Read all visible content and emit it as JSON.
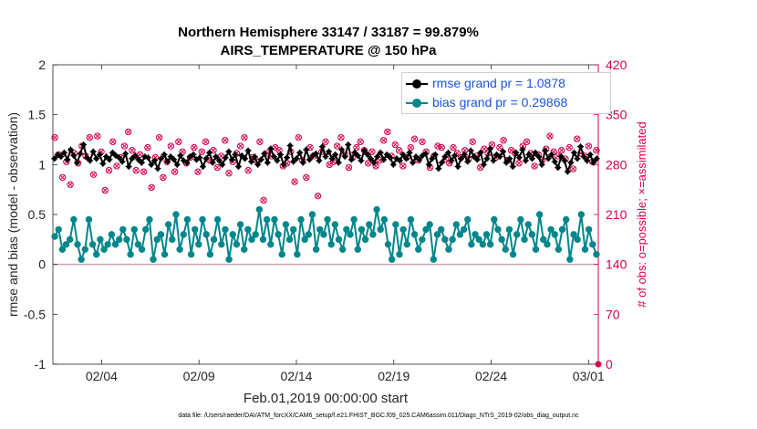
{
  "title_line1": "Northern Hemisphere 33147 / 33187 = 99.879%",
  "title_line2": "AIRS_TEMPERATURE @ 150 hPa",
  "footer": "data file: /Users/raeder/DAI/ATM_forcXX/CAM6_setup/f.e21.FHIST_BGC.f09_025.CAM6assim.011/Diags_NTrS_2019-02/obs_diag_output.nc",
  "colors": {
    "rmse": "#000000",
    "bias": "#00868b",
    "obs": "#d6004f",
    "zero_line": "#c8a2a8"
  },
  "chart_data": {
    "type": "line",
    "xlabel": "Feb.01,2019 00:00:00 start",
    "ylabel": "rmse and bias (model - observation)",
    "y2label": "# of obs: o=possible; ×=assimilated",
    "xlim": [
      0,
      28
    ],
    "ylim": [
      -1,
      2
    ],
    "y2lim": [
      0,
      420
    ],
    "x_ticks": [
      2.5,
      7.5,
      12.5,
      17.5,
      22.5,
      27.5
    ],
    "x_tick_labels": [
      "02/04",
      "02/09",
      "02/14",
      "02/19",
      "02/24",
      "03/01"
    ],
    "y_ticks": [
      -1,
      -0.5,
      0,
      0.5,
      1,
      1.5,
      2
    ],
    "y_tick_labels": [
      "-1",
      "-0.5",
      "0",
      "0.5",
      "1",
      "1.5",
      "2"
    ],
    "y2_ticks": [
      0,
      70,
      140,
      210,
      280,
      350,
      420
    ],
    "y2_tick_labels": [
      "0",
      "70",
      "140",
      "210",
      "280",
      "350",
      "420"
    ],
    "legend_placement": "top-right",
    "grid": false,
    "series": [
      {
        "name": "rmse grand pr = 1.0878",
        "values": [
          1.06,
          1.1,
          1.08,
          1.12,
          1.05,
          1.15,
          1.09,
          1.02,
          1.11,
          1.2,
          1.07,
          1.04,
          1.13,
          1.06,
          1.1,
          1.01,
          1.08,
          1.05,
          1.12,
          1.09,
          1.07,
          1.03,
          1.11,
          0.98,
          1.06,
          1.09,
          1.05,
          1.02,
          1.08,
          1.07,
          1.0,
          1.04,
          0.96,
          1.06,
          1.1,
          1.03,
          1.08,
          1.05,
          1.0,
          1.09,
          1.04,
          1.02,
          1.08,
          1.1,
          1.05,
          1.07,
          0.98,
          1.06,
          1.12,
          1.02,
          1.08,
          1.04,
          1.0,
          1.07,
          1.13,
          1.05,
          1.1,
          0.98,
          1.09,
          1.06,
          1.14,
          1.03,
          1.08,
          1.0,
          1.05,
          1.11,
          1.02,
          1.16,
          1.08,
          1.04,
          1.1,
          1.0,
          1.07,
          1.19,
          1.03,
          1.06,
          1.12,
          1.02,
          1.15,
          1.05,
          1.09,
          1.11,
          1.04,
          1.18,
          1.08,
          1.13,
          1.06,
          1.1,
          1.02,
          1.15,
          1.08,
          1.2,
          1.05,
          1.12,
          1.09,
          1.04,
          1.14,
          1.1,
          1.06,
          1.02,
          1.08,
          1.12,
          1.05,
          1.1,
          1.07,
          1.0,
          1.06,
          1.04,
          1.1,
          1.06,
          1.12,
          1.02,
          1.08,
          1.05,
          1.09,
          1.11,
          1.0,
          1.06,
          1.1,
          0.96,
          1.02,
          1.08,
          1.12,
          1.04,
          1.09,
          0.98,
          1.06,
          1.1,
          1.03,
          1.14,
          1.08,
          1.05,
          1.12,
          1.0,
          1.06,
          1.16,
          1.04,
          1.1,
          1.08,
          1.13,
          1.02,
          1.06,
          0.98,
          1.12,
          1.07,
          1.15,
          1.04,
          1.1,
          1.06,
          1.12,
          1.08,
          1.0,
          1.14,
          1.06,
          1.1,
          1.03,
          0.97,
          1.08,
          1.04,
          0.93,
          1.02,
          1.12,
          1.06,
          1.18,
          1.08,
          1.04,
          1.1,
          1.02,
          1.06
        ]
      },
      {
        "name": "bias grand pr = 0.29868",
        "values": [
          0.28,
          0.35,
          0.15,
          0.2,
          0.25,
          0.45,
          0.2,
          0.05,
          0.15,
          0.45,
          0.2,
          0.1,
          0.25,
          0.15,
          0.2,
          0.3,
          0.2,
          0.25,
          0.35,
          0.25,
          0.1,
          0.35,
          0.2,
          0.15,
          0.35,
          0.45,
          0.05,
          0.25,
          0.3,
          0.1,
          0.4,
          0.25,
          0.5,
          0.15,
          0.3,
          0.45,
          0.1,
          0.35,
          0.2,
          0.45,
          0.3,
          0.1,
          0.25,
          0.45,
          0.2,
          0.35,
          0.05,
          0.3,
          0.2,
          0.4,
          0.15,
          0.35,
          0.25,
          0.3,
          0.55,
          0.25,
          0.45,
          0.2,
          0.45,
          0.3,
          0.1,
          0.4,
          0.25,
          0.35,
          0.1,
          0.45,
          0.25,
          0.3,
          0.5,
          0.15,
          0.35,
          0.3,
          0.45,
          0.2,
          0.4,
          0.25,
          0.15,
          0.35,
          0.3,
          0.45,
          0.15,
          0.35,
          0.25,
          0.4,
          0.3,
          0.55,
          0.35,
          0.45,
          0.2,
          0.05,
          0.4,
          0.1,
          0.35,
          0.2,
          0.45,
          0.3,
          0.15,
          0.25,
          0.35,
          0.4,
          0.05,
          0.3,
          0.35,
          0.25,
          0.15,
          0.25,
          0.4,
          0.3,
          0.35,
          0.45,
          0.2,
          0.3,
          0.25,
          0.2,
          0.3,
          0.2,
          0.45,
          0.35,
          0.25,
          0.15,
          0.35,
          0.1,
          0.3,
          0.45,
          0.25,
          0.4,
          0.3,
          0.15,
          0.5,
          0.25,
          0.2,
          0.35,
          0.3,
          0.15,
          0.35,
          0.45,
          0.05,
          0.3,
          0.25,
          0.5,
          0.15,
          0.35,
          0.2,
          0.1
        ]
      },
      {
        "name": "# of obs possible",
        "values": [
          318,
          294,
          262,
          284,
          252,
          296,
          282,
          306,
          292,
          318,
          266,
          320,
          298,
          244,
          272,
          312,
          278,
          290,
          306,
          326,
          300,
          272,
          294,
          270,
          304,
          248,
          290,
          318,
          262,
          284,
          306,
          270,
          312,
          298,
          282,
          290,
          304,
          270,
          298,
          312,
          286,
          300,
          276,
          292,
          314,
          268,
          284,
          296,
          306,
          318,
          272,
          290,
          286,
          312,
          230,
          296,
          292,
          304,
          300,
          278,
          282,
          298,
          256,
          318,
          286,
          262,
          304,
          292,
          236,
          298,
          312,
          280,
          284,
          306,
          318,
          294,
          276,
          290,
          304,
          312,
          300,
          282,
          298,
          278,
          286,
          314,
          326,
          292,
          308,
          300,
          278,
          290,
          304,
          316,
          286,
          312,
          298,
          276,
          292,
          306,
          304,
          288,
          282,
          304,
          296,
          290,
          300,
          288,
          312,
          292,
          276,
          302,
          296,
          308,
          290,
          304,
          314,
          286,
          300,
          296,
          282,
          306,
          312,
          296,
          278,
          294,
          286,
          302,
          320,
          298,
          292,
          300,
          288,
          304,
          274,
          316,
          296,
          292,
          306,
          284,
          300
        ]
      },
      {
        "name": "# of obs assimilated",
        "values": [
          318,
          294,
          262,
          284,
          252,
          296,
          282,
          306,
          292,
          318,
          266,
          320,
          298,
          244,
          272,
          312,
          278,
          290,
          306,
          326,
          300,
          272,
          294,
          270,
          304,
          248,
          290,
          318,
          262,
          284,
          306,
          270,
          312,
          298,
          282,
          290,
          304,
          270,
          298,
          312,
          286,
          300,
          276,
          292,
          314,
          268,
          284,
          296,
          306,
          318,
          272,
          290,
          286,
          312,
          230,
          296,
          292,
          304,
          300,
          278,
          282,
          298,
          256,
          318,
          286,
          262,
          304,
          292,
          236,
          298,
          312,
          280,
          284,
          306,
          318,
          294,
          276,
          290,
          304,
          312,
          300,
          282,
          298,
          278,
          286,
          314,
          326,
          292,
          308,
          300,
          278,
          290,
          304,
          316,
          286,
          312,
          298,
          276,
          292,
          306,
          304,
          288,
          282,
          304,
          296,
          290,
          300,
          288,
          312,
          292,
          276,
          302,
          296,
          308,
          290,
          304,
          314,
          286,
          300,
          296,
          282,
          306,
          312,
          296,
          278,
          294,
          286,
          302,
          320,
          298,
          292,
          300,
          288,
          304,
          274,
          316,
          296,
          292,
          306,
          284,
          300
        ]
      }
    ]
  }
}
